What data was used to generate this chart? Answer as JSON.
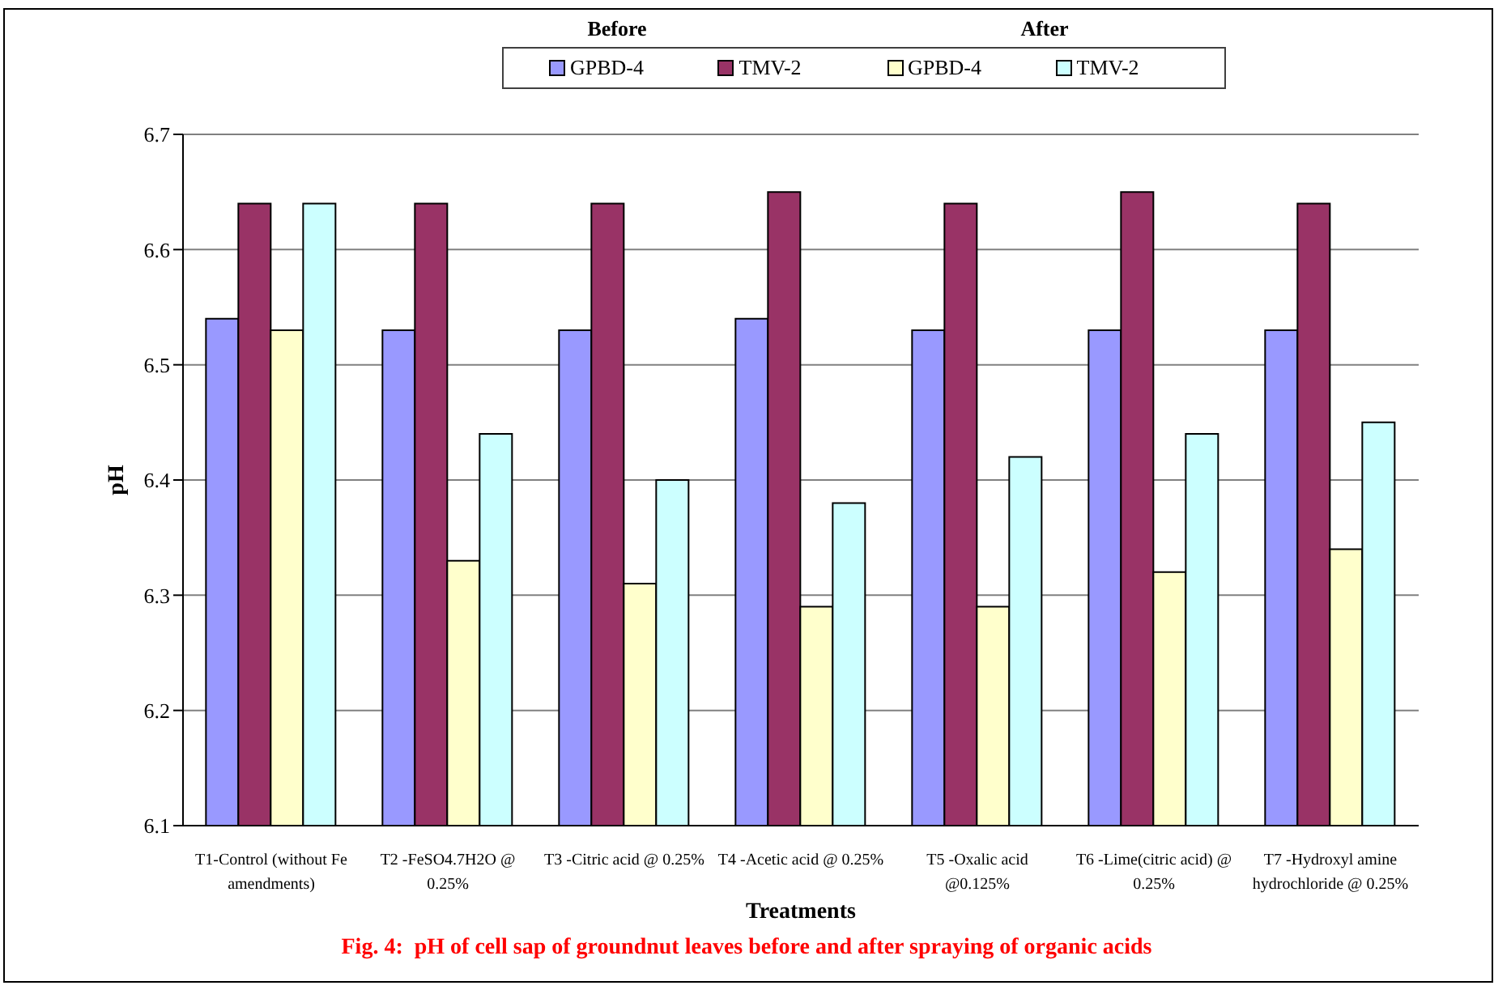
{
  "chart_data": {
    "type": "bar",
    "title": "Fig. 4:  pH of cell sap of groundnut leaves before and after spraying of organic acids",
    "xlabel": "Treatments",
    "ylabel": "pH",
    "annotations": [
      "Before",
      "After"
    ],
    "categories": [
      "T1-Control (without Fe amendments)",
      "T2 -FeSO4.7H2O @ 0.25%",
      "T3 -Citric acid @ 0.25%",
      "T4 -Acetic acid @ 0.25%",
      "T5 -Oxalic acid @0.125%",
      "T6 -Lime(citric acid) @ 0.25%",
      "T7 -Hydroxyl amine hydrochloride @ 0.25%"
    ],
    "series": [
      {
        "name": "GPBD-4",
        "color": "#9999ff",
        "values": [
          6.54,
          6.53,
          6.53,
          6.54,
          6.53,
          6.53,
          6.53
        ]
      },
      {
        "name": "TMV-2",
        "color": "#993366",
        "values": [
          6.64,
          6.64,
          6.64,
          6.65,
          6.64,
          6.65,
          6.64
        ]
      },
      {
        "name": "GPBD-4",
        "color": "#ffffcc",
        "values": [
          6.53,
          6.33,
          6.31,
          6.29,
          6.29,
          6.32,
          6.34
        ]
      },
      {
        "name": "TMV-2",
        "color": "#ccffff",
        "values": [
          6.64,
          6.44,
          6.4,
          6.38,
          6.42,
          6.44,
          6.45
        ]
      }
    ],
    "ylim": [
      6.1,
      6.7
    ],
    "yticks": [
      6.1,
      6.2,
      6.3,
      6.4,
      6.5,
      6.6,
      6.7
    ],
    "grid": "y",
    "legend": "top"
  }
}
